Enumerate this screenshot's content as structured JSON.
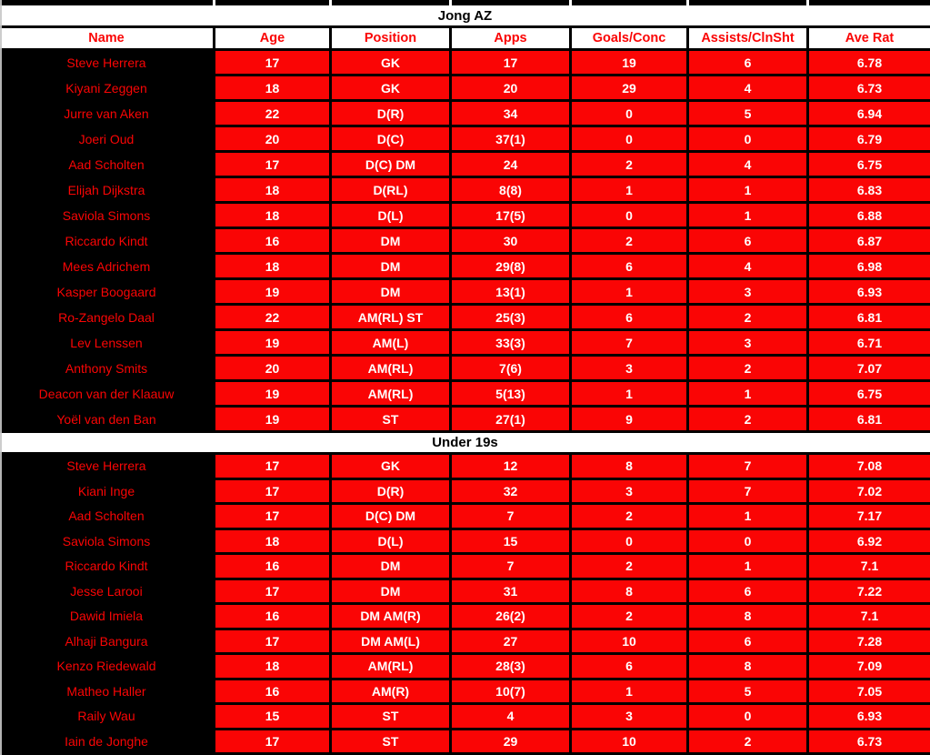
{
  "colors": {
    "cell_red": "#fa0505",
    "cell_black": "#000000",
    "cell_white": "#ffffff",
    "header_text_red": "#fa0505",
    "title_text_black": "#000000"
  },
  "columns": [
    "Name",
    "Age",
    "Position",
    "Apps",
    "Goals/Conc",
    "Assists/ClnSht",
    "Ave Rat"
  ],
  "sections": [
    {
      "title": "Jong AZ",
      "rows": [
        {
          "name": "Steve Herrera",
          "age": 17,
          "position": "GK",
          "apps": "17",
          "goals": 19,
          "assists": 6,
          "rating": "6.78"
        },
        {
          "name": "Kiyani Zeggen",
          "age": 18,
          "position": "GK",
          "apps": "20",
          "goals": 29,
          "assists": 4,
          "rating": "6.73"
        },
        {
          "name": "Jurre van Aken",
          "age": 22,
          "position": "D(R)",
          "apps": "34",
          "goals": 0,
          "assists": 5,
          "rating": "6.94"
        },
        {
          "name": "Joeri Oud",
          "age": 20,
          "position": "D(C)",
          "apps": "37(1)",
          "goals": 0,
          "assists": 0,
          "rating": "6.79"
        },
        {
          "name": "Aad Scholten",
          "age": 17,
          "position": "D(C) DM",
          "apps": "24",
          "goals": 2,
          "assists": 4,
          "rating": "6.75"
        },
        {
          "name": "Elijah Dijkstra",
          "age": 18,
          "position": "D(RL)",
          "apps": "8(8)",
          "goals": 1,
          "assists": 1,
          "rating": "6.83"
        },
        {
          "name": "Saviola Simons",
          "age": 18,
          "position": "D(L)",
          "apps": "17(5)",
          "goals": 0,
          "assists": 1,
          "rating": "6.88"
        },
        {
          "name": "Riccardo Kindt",
          "age": 16,
          "position": "DM",
          "apps": "30",
          "goals": 2,
          "assists": 6,
          "rating": "6.87"
        },
        {
          "name": "Mees Adrichem",
          "age": 18,
          "position": "DM",
          "apps": "29(8)",
          "goals": 6,
          "assists": 4,
          "rating": "6.98"
        },
        {
          "name": "Kasper Boogaard",
          "age": 19,
          "position": "DM",
          "apps": "13(1)",
          "goals": 1,
          "assists": 3,
          "rating": "6.93"
        },
        {
          "name": "Ro-Zangelo Daal",
          "age": 22,
          "position": "AM(RL) ST",
          "apps": "25(3)",
          "goals": 6,
          "assists": 2,
          "rating": "6.81"
        },
        {
          "name": "Lev Lenssen",
          "age": 19,
          "position": "AM(L)",
          "apps": "33(3)",
          "goals": 7,
          "assists": 3,
          "rating": "6.71"
        },
        {
          "name": "Anthony Smits",
          "age": 20,
          "position": "AM(RL)",
          "apps": "7(6)",
          "goals": 3,
          "assists": 2,
          "rating": "7.07"
        },
        {
          "name": "Deacon van der Klaauw",
          "age": 19,
          "position": "AM(RL)",
          "apps": "5(13)",
          "goals": 1,
          "assists": 1,
          "rating": "6.75"
        },
        {
          "name": "Yoël van den Ban",
          "age": 19,
          "position": "ST",
          "apps": "27(1)",
          "goals": 9,
          "assists": 2,
          "rating": "6.81"
        }
      ]
    },
    {
      "title": "Under 19s",
      "rows": [
        {
          "name": "Steve Herrera",
          "age": 17,
          "position": "GK",
          "apps": "12",
          "goals": 8,
          "assists": 7,
          "rating": "7.08"
        },
        {
          "name": "Kiani Inge",
          "age": 17,
          "position": "D(R)",
          "apps": "32",
          "goals": 3,
          "assists": 7,
          "rating": "7.02"
        },
        {
          "name": "Aad Scholten",
          "age": 17,
          "position": "D(C) DM",
          "apps": "7",
          "goals": 2,
          "assists": 1,
          "rating": "7.17"
        },
        {
          "name": "Saviola Simons",
          "age": 18,
          "position": "D(L)",
          "apps": "15",
          "goals": 0,
          "assists": 0,
          "rating": "6.92"
        },
        {
          "name": "Riccardo Kindt",
          "age": 16,
          "position": "DM",
          "apps": "7",
          "goals": 2,
          "assists": 1,
          "rating": "7.1"
        },
        {
          "name": "Jesse Larooi",
          "age": 17,
          "position": "DM",
          "apps": "31",
          "goals": 8,
          "assists": 6,
          "rating": "7.22"
        },
        {
          "name": "Dawid Imiela",
          "age": 16,
          "position": "DM AM(R)",
          "apps": "26(2)",
          "goals": 2,
          "assists": 8,
          "rating": "7.1"
        },
        {
          "name": "Alhaji Bangura",
          "age": 17,
          "position": "DM AM(L)",
          "apps": "27",
          "goals": 10,
          "assists": 6,
          "rating": "7.28"
        },
        {
          "name": "Kenzo Riedewald",
          "age": 18,
          "position": "AM(RL)",
          "apps": "28(3)",
          "goals": 6,
          "assists": 8,
          "rating": "7.09"
        },
        {
          "name": "Matheo Haller",
          "age": 16,
          "position": "AM(R)",
          "apps": "10(7)",
          "goals": 1,
          "assists": 5,
          "rating": "7.05"
        },
        {
          "name": "Raily Wau",
          "age": 15,
          "position": "ST",
          "apps": "4",
          "goals": 3,
          "assists": 0,
          "rating": "6.93"
        },
        {
          "name": "Iain de Jonghe",
          "age": 17,
          "position": "ST",
          "apps": "29",
          "goals": 10,
          "assists": 2,
          "rating": "6.73"
        }
      ]
    }
  ]
}
